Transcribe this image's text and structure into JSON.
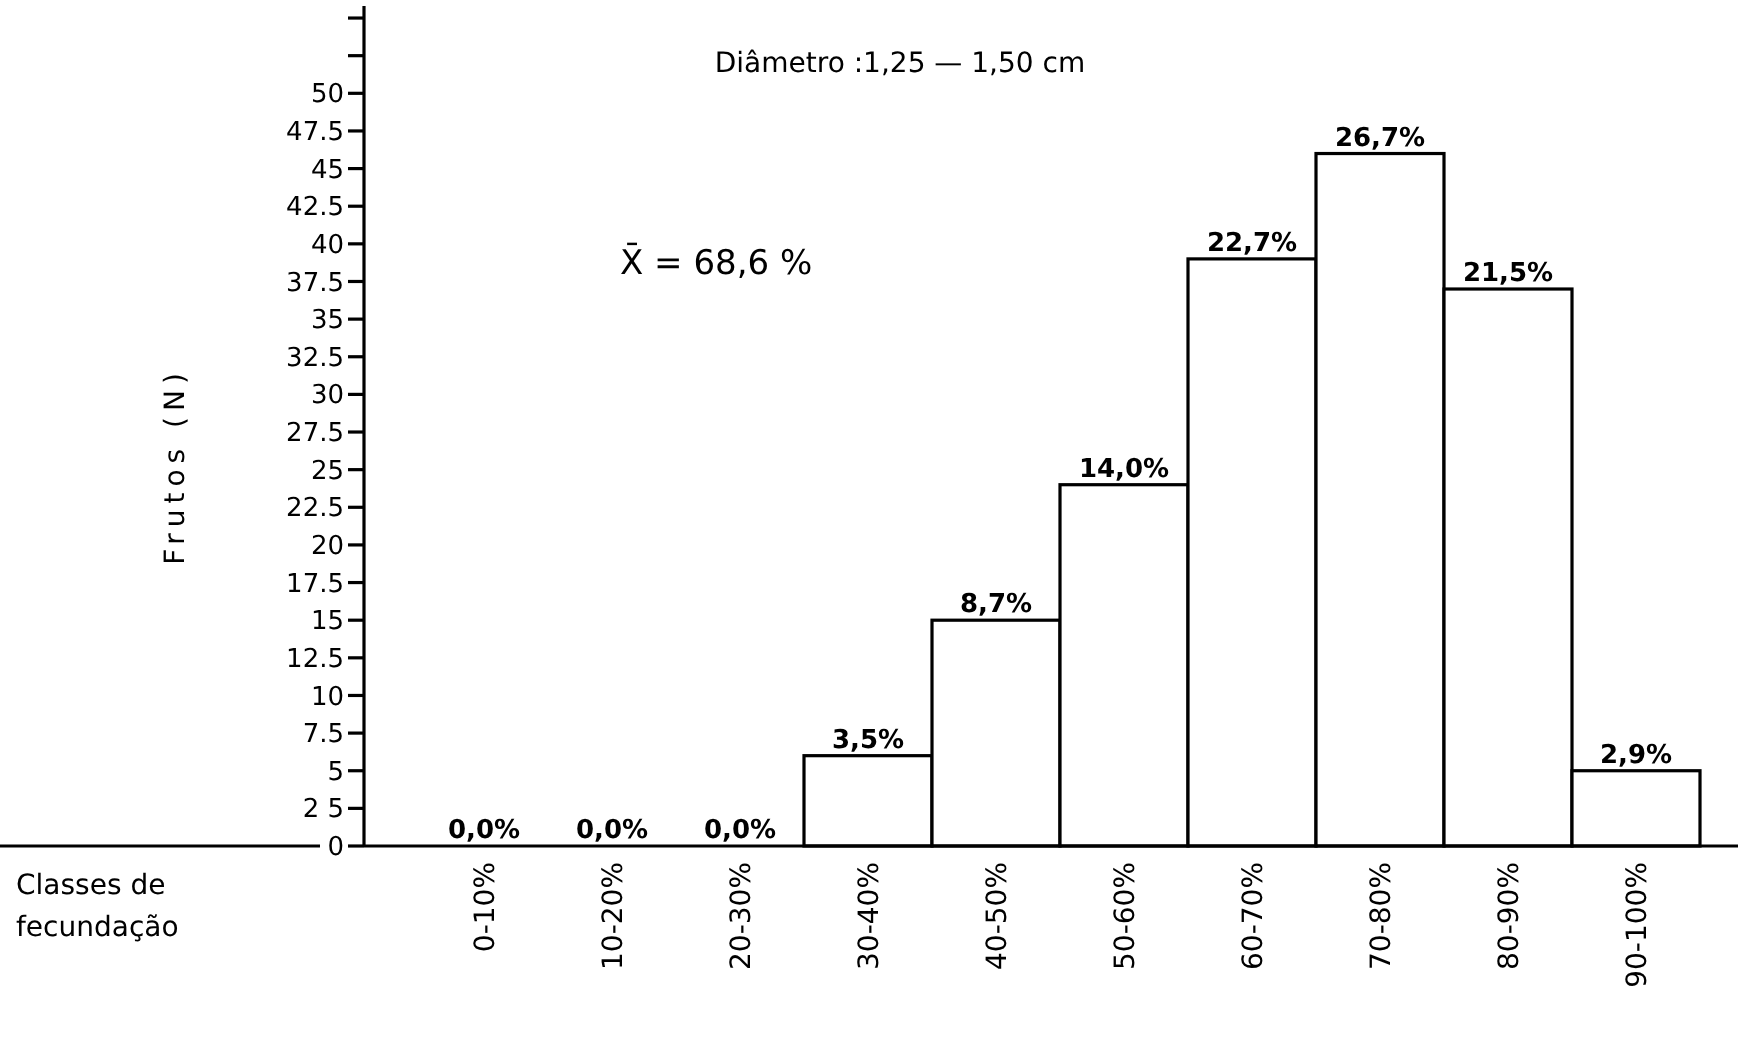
{
  "chart_data": {
    "type": "bar",
    "title": "Diâmetro :1,25 — 1,50 cm",
    "ylabel": "Frutos (N)",
    "xlabel": "Classes de fecundação",
    "annotations": [
      "X̄ = 68,6 %",
      {
        "text": "0,0%",
        "x": "0-10%",
        "y": 0
      },
      {
        "text": "0,0%",
        "x": "10-20%",
        "y": 0
      },
      {
        "text": "0,0%",
        "x": "20-30%",
        "y": 0
      },
      {
        "text": "3,5%",
        "x": "30-40%",
        "y": 6
      },
      {
        "text": "8,7%",
        "x": "40-50%",
        "y": 15
      },
      {
        "text": "14,0%",
        "x": "50-60%",
        "y": 24
      },
      {
        "text": "22,7%",
        "x": "60-70%",
        "y": 39
      },
      {
        "text": "26,7%",
        "x": "70-80%",
        "y": 46
      },
      {
        "text": "21,5%",
        "x": "80-90%",
        "y": 37
      },
      {
        "text": "2,9%",
        "x": "90-100%",
        "y": 5
      }
    ],
    "categories": [
      "0-10%",
      "10-20%",
      "20-30%",
      "30-40%",
      "40-50%",
      "50-60%",
      "60-70%",
      "70-80%",
      "80-90%",
      "90-100%"
    ],
    "values": [
      0,
      0,
      0,
      6,
      15,
      24,
      39,
      46,
      37,
      5
    ],
    "color": "#ffffff",
    "ylim": [
      0,
      55.8
    ],
    "yticks": [
      0,
      {
        "value": 2.5,
        "label": "2 5"
      },
      5,
      {
        "value": 7.5,
        "label": "7.5"
      },
      10,
      {
        "value": 12.5,
        "label": "12.5"
      },
      15,
      {
        "value": 17.5,
        "label": "17.5"
      },
      20,
      {
        "value": 22.5,
        "label": "22.5"
      },
      25,
      {
        "value": 27.5,
        "label": "27.5"
      },
      30,
      {
        "value": 32.5,
        "label": "32.5"
      },
      35,
      {
        "value": 37.5,
        "label": "37.5"
      },
      40,
      {
        "value": 42.5,
        "label": "42.5"
      },
      45,
      {
        "value": 47.5,
        "label": "47.5"
      },
      50,
      {
        "value": 52.5,
        "label": null
      },
      {
        "value": 55,
        "label": null
      }
    ],
    "grid": false
  }
}
